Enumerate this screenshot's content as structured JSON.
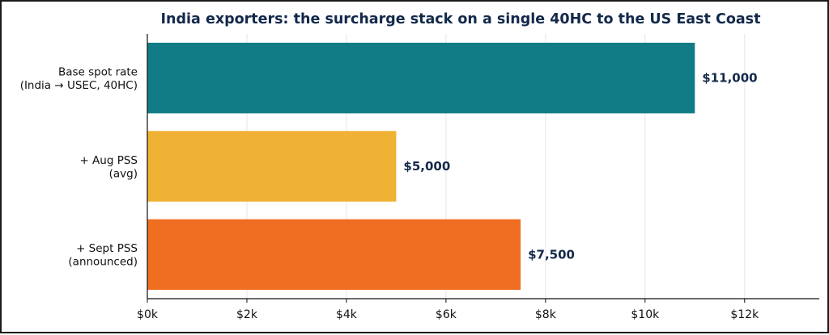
{
  "chart_data": {
    "type": "bar",
    "orientation": "horizontal",
    "title": "India exporters: the surcharge stack on a single 40HC to the US East Coast",
    "xlabel": "",
    "ylabel": "",
    "categories": [
      [
        "Base spot rate",
        "(India → USEC, 40HC)"
      ],
      [
        "+ Aug PSS",
        "(avg)"
      ],
      [
        "+ Sept PSS",
        "(announced)"
      ]
    ],
    "values": [
      11000,
      5000,
      7500
    ],
    "data_labels": [
      "$11,000",
      "$5,000",
      "$7,500"
    ],
    "bar_colors": [
      "#127c86",
      "#f0b234",
      "#f06e22"
    ],
    "xlim": [
      0,
      13500
    ],
    "xticks": [
      0,
      2000,
      4000,
      6000,
      8000,
      10000,
      12000
    ],
    "xtick_labels": [
      "$0k",
      "$2k",
      "$4k",
      "$6k",
      "$8k",
      "$10k",
      "$12k"
    ],
    "grid": "x",
    "legend": "none",
    "title_color": "#13294b",
    "label_color": "#13294b"
  }
}
